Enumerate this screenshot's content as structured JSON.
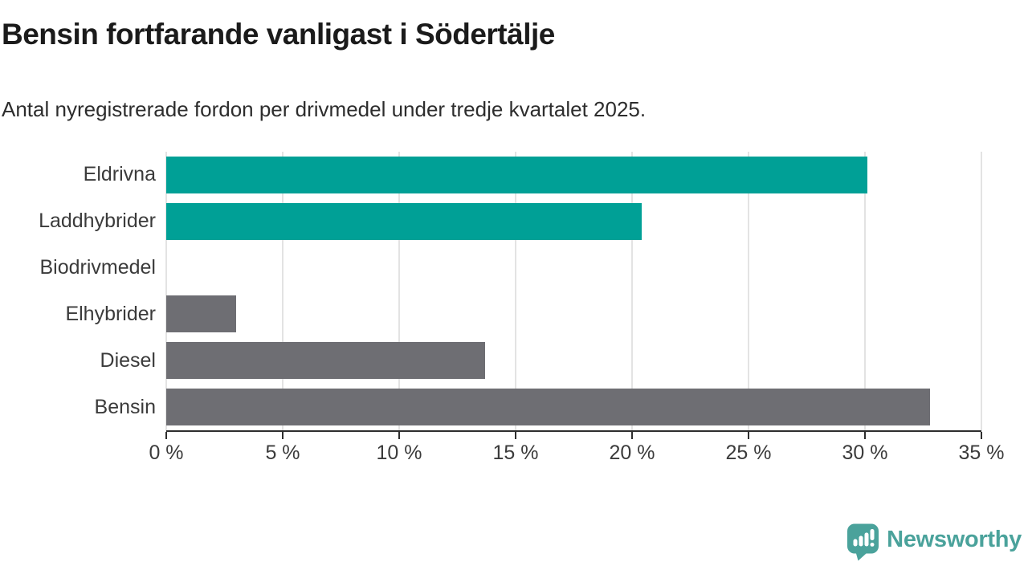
{
  "header": {
    "title": "Bensin fortfarande vanligast i Södertälje",
    "subtitle": "Antal nyregistrerade fordon per drivmedel under tredje kvartalet 2025."
  },
  "chart_data": {
    "type": "bar",
    "orientation": "horizontal",
    "categories": [
      "Eldrivna",
      "Laddhybrider",
      "Biodrivmedel",
      "Elhybrider",
      "Diesel",
      "Bensin"
    ],
    "values": [
      30.1,
      20.4,
      0,
      3.0,
      13.7,
      32.8
    ],
    "unit": "%",
    "bar_colors": [
      "#00a096",
      "#00a096",
      "#6e6e73",
      "#6e6e73",
      "#6e6e73",
      "#6e6e73"
    ],
    "xlim": [
      0,
      35
    ],
    "x_tick_step": 5,
    "x_tick_labels": [
      "0 %",
      "5 %",
      "10 %",
      "15 %",
      "20 %",
      "25 %",
      "30 %",
      "35 %"
    ],
    "ylabel": "",
    "xlabel": "",
    "grid": true,
    "legend": false
  },
  "colors": {
    "accent_teal": "#00a096",
    "bar_gray": "#6e6e73",
    "gridline": "#e3e3e3",
    "axis": "#2e2e2e",
    "title_text": "#1b1b1b",
    "body_text": "#3b3b3b",
    "logo_teal": "#4aa29b"
  },
  "branding": {
    "logo_text": "Newsworthy",
    "logo_icon": "speech-bubble-bar-chart-icon"
  }
}
